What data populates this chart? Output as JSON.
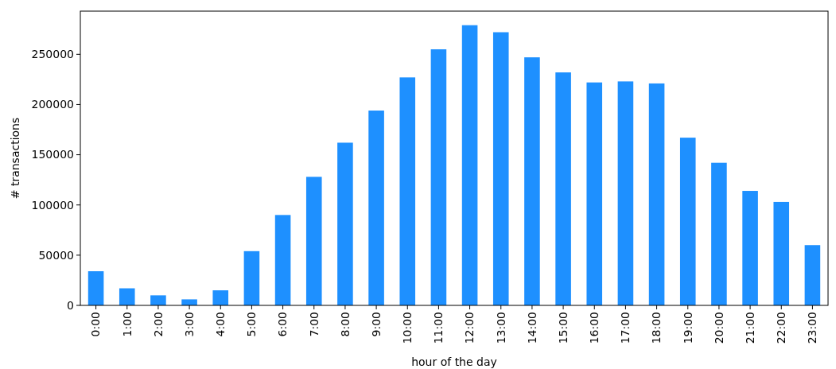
{
  "chart_data": {
    "type": "bar",
    "xlabel": "hour of the day",
    "ylabel": "# transactions",
    "categories": [
      "0:00",
      "1:00",
      "2:00",
      "3:00",
      "4:00",
      "5:00",
      "6:00",
      "7:00",
      "8:00",
      "9:00",
      "10:00",
      "11:00",
      "12:00",
      "13:00",
      "14:00",
      "15:00",
      "16:00",
      "17:00",
      "18:00",
      "19:00",
      "20:00",
      "21:00",
      "22:00",
      "23:00"
    ],
    "values": [
      34000,
      17000,
      10000,
      6000,
      15000,
      54000,
      90000,
      128000,
      162000,
      194000,
      227000,
      255000,
      279000,
      272000,
      247000,
      232000,
      222000,
      223000,
      221000,
      167000,
      142000,
      114000,
      103000,
      60000
    ],
    "color": "#1e90ff",
    "ylim": [
      0,
      293000
    ],
    "yticks": [
      0,
      50000,
      100000,
      150000,
      200000,
      250000
    ],
    "grid": false
  }
}
